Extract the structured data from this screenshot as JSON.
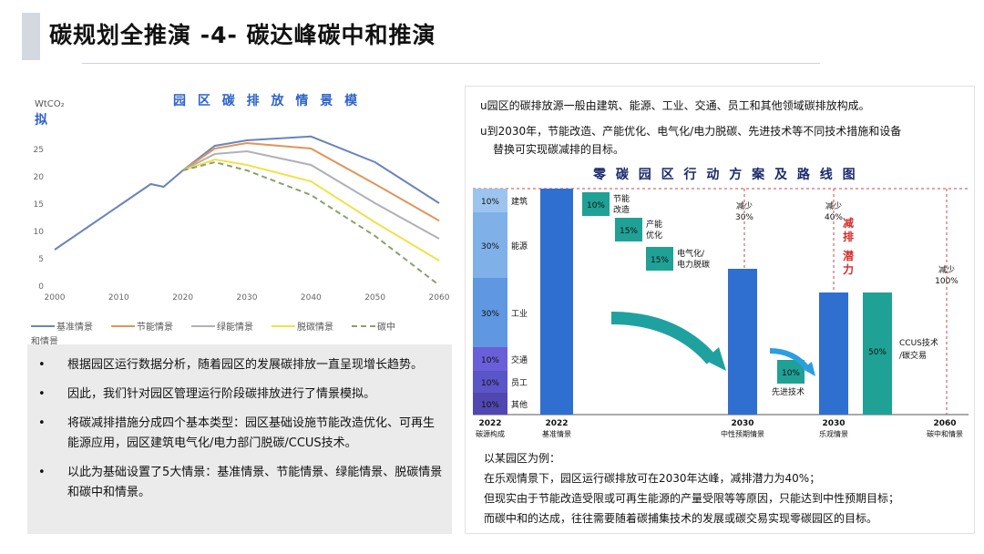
{
  "header": {
    "title": "碳规划全推演 -4- 碳达峰碳中和推演"
  },
  "left_chart": {
    "unit": "WtCO₂",
    "title_part1": "园 区 碳 排 放 情 景 模",
    "title_part2": "拟",
    "legend": [
      {
        "label": "基准情景",
        "color": "#6a84b8"
      },
      {
        "label": "节能情景",
        "color": "#e0955a"
      },
      {
        "label": "绿能情景",
        "color": "#b0b0b8"
      },
      {
        "label": "脱碳情景",
        "color": "#f0e14a"
      },
      {
        "label": "碳中",
        "color": "#8aa070"
      }
    ],
    "legend_wrap": "和情景",
    "chart_data": {
      "type": "line",
      "x": [
        2000,
        2005,
        2010,
        2015,
        2020,
        2025,
        2030,
        2040,
        2050,
        2060
      ],
      "ylim": [
        0,
        30
      ],
      "xlim": [
        2000,
        2060
      ],
      "yticks": [
        0,
        5,
        10,
        15,
        20,
        25
      ],
      "xticks": [
        2000,
        2010,
        2020,
        2030,
        2040,
        2050,
        2060
      ],
      "series": [
        {
          "name": "基准情景",
          "x": [
            2000,
            2005,
            2010,
            2015,
            2017,
            2020,
            2025,
            2030,
            2040,
            2050,
            2060
          ],
          "values": [
            6.5,
            10.5,
            14.5,
            18.5,
            18,
            21,
            25.5,
            26.5,
            27.2,
            22.5,
            15
          ]
        },
        {
          "name": "节能情景",
          "x": [
            2020,
            2025,
            2030,
            2040,
            2050,
            2060
          ],
          "values": [
            21,
            25,
            26,
            25,
            18.5,
            11.8
          ]
        },
        {
          "name": "绿能情景",
          "x": [
            2020,
            2025,
            2030,
            2040,
            2050,
            2060
          ],
          "values": [
            21,
            24,
            24.5,
            22,
            15,
            8.5
          ]
        },
        {
          "name": "脱碳情景",
          "x": [
            2020,
            2025,
            2030,
            2040,
            2050,
            2060
          ],
          "values": [
            21,
            23,
            22,
            19,
            11.5,
            4.5
          ]
        },
        {
          "name": "碳中和情景",
          "x": [
            2020,
            2025,
            2030,
            2040,
            2050,
            2060
          ],
          "values": [
            21,
            22.5,
            21,
            16.5,
            9,
            0
          ]
        }
      ]
    }
  },
  "bullets": [
    "根据园区运行数据分析，随着园区的发展碳排放一直呈现增长趋势。",
    "因此，我们针对园区管理运行阶段碳排放进行了情景模拟。",
    "将碳减排措施分成四个基本类型：园区基础设施节能改造优化、可再生能源应用，园区建筑电气化/电力部门脱碳/CCUS技术。",
    "以此为基础设置了5大情景：基准情景、节能情景、绿能情景、脱碳情景和碳中和情景。"
  ],
  "right_panel": {
    "line1": "u园区的碳排放源一般由建筑、能源、工业、交通、员工和其他领域碳排放构成。",
    "line2": "u到2030年，节能改造、产能优化、电气化/电力脱碳、先进技术等不同技术措施和设备",
    "line2b": "替换可实现碳减排的目标。",
    "chart_title": "零 碳 园 区 行 动 方 案 及 路 线 图",
    "chart_data": {
      "type": "bar",
      "composition": [
        {
          "pct": "10%",
          "label": "建筑"
        },
        {
          "pct": "30%",
          "label": "能源"
        },
        {
          "pct": "30%",
          "label": "工业"
        },
        {
          "pct": "10%",
          "label": "交通"
        },
        {
          "pct": "10%",
          "label": "员工"
        },
        {
          "pct": "10%",
          "label": "其他"
        }
      ],
      "steps": [
        {
          "pct": "10%",
          "label1": "节能",
          "label2": "改造"
        },
        {
          "pct": "15%",
          "label1": "产能",
          "label2": "优化"
        },
        {
          "pct": "15%",
          "label1": "电气化/",
          "label2": "电力脱碳"
        },
        {
          "pct": "10%",
          "label1": "先进技术",
          "label2": ""
        },
        {
          "pct": "50%",
          "label1": "CCUS技术",
          "label2": "/碳交易"
        }
      ],
      "reductions": [
        "减少",
        "30%",
        "减少",
        "40%",
        "减少",
        "100%"
      ],
      "potential": "减排潜力",
      "x_labels": [
        {
          "top": "2022",
          "bottom": "碳源构成"
        },
        {
          "top": "2022",
          "bottom": "基准情景"
        },
        {
          "top": "2030",
          "bottom": "中性预期情景"
        },
        {
          "top": "2030",
          "bottom": "乐观情景"
        },
        {
          "top": "2060",
          "bottom": "碳中和情景"
        }
      ]
    },
    "example": [
      "以某园区为例：",
      "在乐观情景下，园区运行碳排放可在2030年达峰，减排潜力为40%；",
      "但现实由于节能改造受限或可再生能源的产量受限等等原因，只能达到中性预期目标；",
      "而碳中和的达成，往往需要随着碳捕集技术的发展或碳交易实现零碳园区的目标。"
    ]
  }
}
